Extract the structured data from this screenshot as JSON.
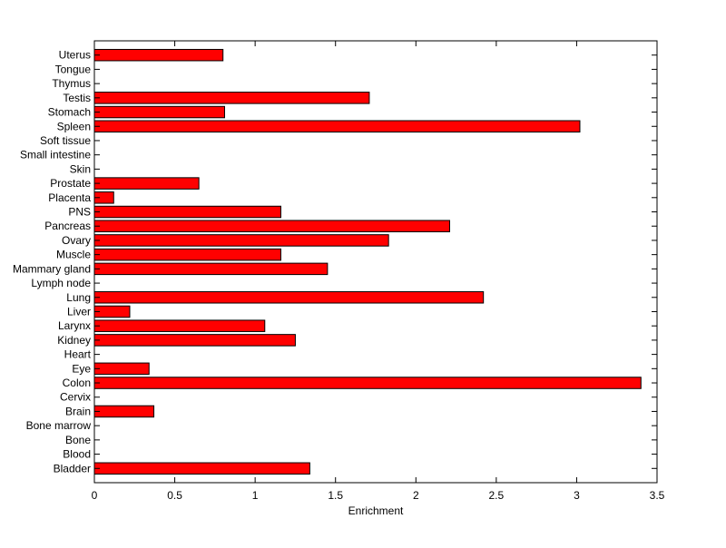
{
  "chart_data": {
    "type": "bar",
    "orientation": "horizontal",
    "title": "",
    "xlabel": "Enrichment",
    "ylabel": "",
    "xlim": [
      0,
      3.5
    ],
    "xticks": [
      "0",
      "0.5",
      "1",
      "1.5",
      "2",
      "2.5",
      "3",
      "3.5"
    ],
    "grid": false,
    "bar_color": "#ff0000",
    "categories": [
      "Bladder",
      "Blood",
      "Bone",
      "Bone marrow",
      "Brain",
      "Cervix",
      "Colon",
      "Eye",
      "Heart",
      "Kidney",
      "Larynx",
      "Liver",
      "Lung",
      "Lymph node",
      "Mammary gland",
      "Muscle",
      "Ovary",
      "Pancreas",
      "PNS",
      "Placenta",
      "Prostate",
      "Skin",
      "Small intestine",
      "Soft tissue",
      "Spleen",
      "Stomach",
      "Testis",
      "Thymus",
      "Tongue",
      "Uterus"
    ],
    "values": [
      1.34,
      0,
      0,
      0,
      0.37,
      0,
      3.4,
      0.34,
      0,
      1.25,
      1.06,
      0.22,
      2.42,
      0,
      1.45,
      1.16,
      1.83,
      2.21,
      1.16,
      0.12,
      0.65,
      0,
      0,
      0,
      3.02,
      0.81,
      1.71,
      0,
      0,
      0.8
    ]
  }
}
